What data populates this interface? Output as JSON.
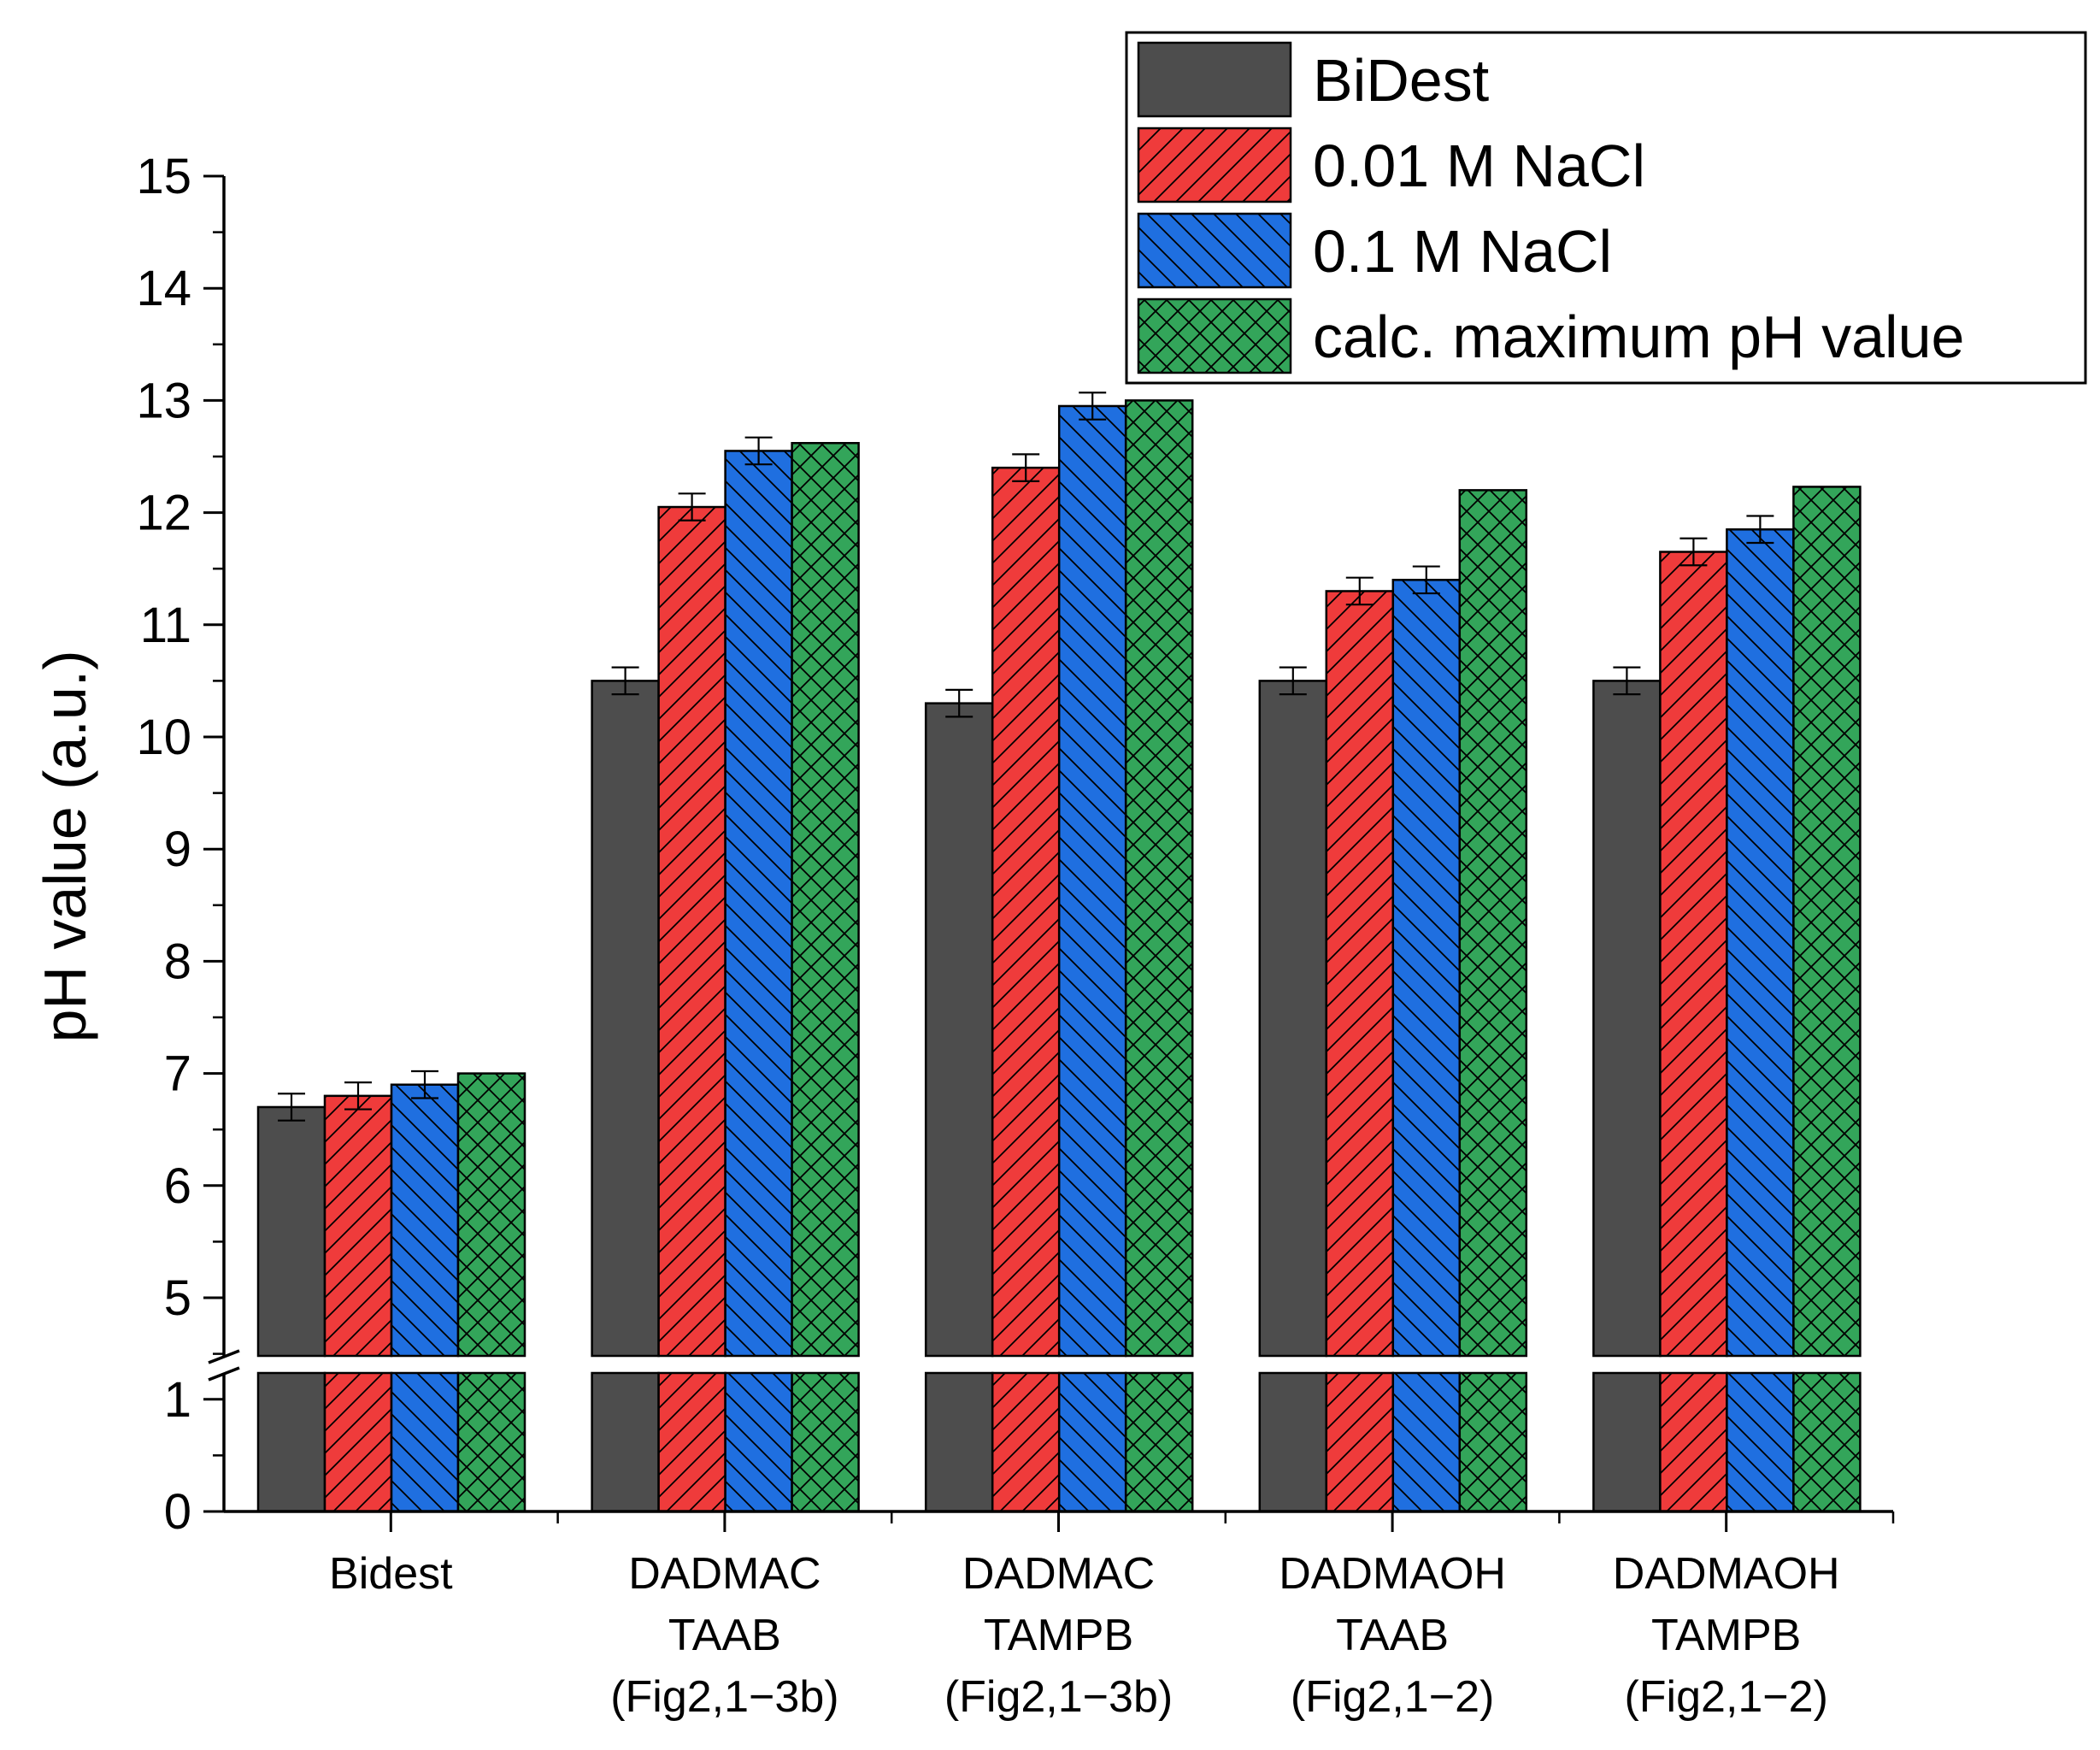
{
  "chart_data": {
    "type": "bar",
    "ylabel": "pH value (a.u.)",
    "xlabel": "",
    "y_ticks_lower": [
      0,
      1
    ],
    "y_ticks_upper": [
      5,
      6,
      7,
      8,
      9,
      10,
      11,
      12,
      13,
      14,
      15
    ],
    "y_break": [
      1.2,
      4.5
    ],
    "ylim": [
      0,
      15
    ],
    "legend_position": "top-right",
    "categories": [
      [
        "Bidest"
      ],
      [
        "DADMAC",
        "TAAB",
        "(Fig2,1−3b)"
      ],
      [
        "DADMAC",
        "TAMPB",
        "(Fig2,1−3b)"
      ],
      [
        "DADMAOH",
        "TAAB",
        "(Fig2,1−2)"
      ],
      [
        "DADMAOH",
        "TAMPB",
        "(Fig2,1−2)"
      ]
    ],
    "series": [
      {
        "name": "BiDest",
        "color": "#4d4d4d",
        "pattern": "none",
        "values": [
          6.7,
          10.5,
          10.3,
          10.5,
          10.5
        ],
        "errors": [
          0.12,
          0.12,
          0.12,
          0.12,
          0.12
        ]
      },
      {
        "name": "0.01 M NaCl",
        "color": "#ef3b3b",
        "pattern": "hatch-forward",
        "values": [
          6.8,
          12.05,
          12.4,
          11.3,
          11.65
        ],
        "errors": [
          0.12,
          0.12,
          0.12,
          0.12,
          0.12
        ]
      },
      {
        "name": "0.1 M NaCl",
        "color": "#1f6fe0",
        "pattern": "hatch-backward",
        "values": [
          6.9,
          12.55,
          12.95,
          11.4,
          11.85
        ],
        "errors": [
          0.12,
          0.12,
          0.12,
          0.12,
          0.12
        ]
      },
      {
        "name": "calc. maximum pH value",
        "color": "#33a55a",
        "pattern": "crosshatch",
        "values": [
          7.0,
          12.62,
          13.0,
          12.2,
          12.23
        ],
        "errors": [
          0,
          0,
          0,
          0,
          0
        ]
      }
    ]
  }
}
